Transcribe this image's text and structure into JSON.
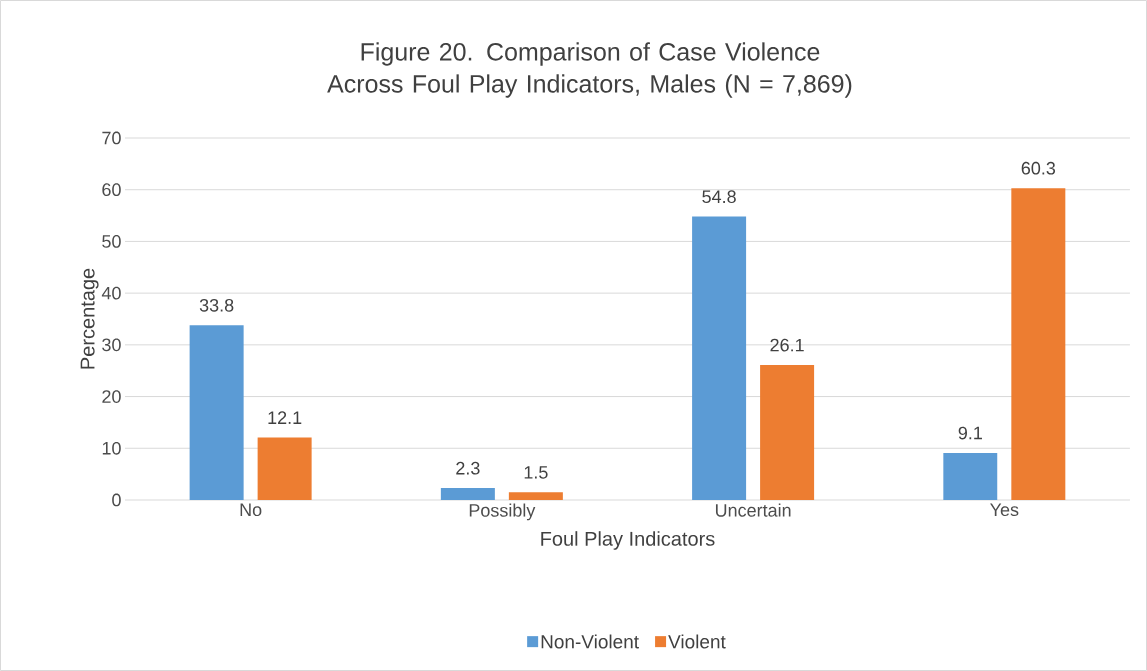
{
  "chart_data": {
    "type": "bar",
    "title": "Figure 20. Comparison of Case Violence Across Foul Play Indicators, Males (N = 7,869)",
    "xlabel": "Foul Play Indicators",
    "ylabel": "Percentage",
    "categories": [
      "No",
      "Possibly",
      "Uncertain",
      "Yes"
    ],
    "series": [
      {
        "name": "Non-Violent",
        "color": "#5b9bd5",
        "values": [
          33.8,
          2.3,
          54.8,
          9.1
        ],
        "value_labels": [
          "33.8",
          "2.3",
          "54.8",
          "9.1"
        ]
      },
      {
        "name": "Violent",
        "color": "#ed7d31",
        "values": [
          12.1,
          1.5,
          26.1,
          60.3
        ],
        "value_labels": [
          "12.1",
          "1.5",
          "26.1",
          "60.3"
        ]
      }
    ],
    "ylim": [
      0,
      70
    ],
    "yticks": [
      0,
      10,
      20,
      30,
      40,
      50,
      60,
      70
    ],
    "grid": "y",
    "legend": "bottom"
  }
}
